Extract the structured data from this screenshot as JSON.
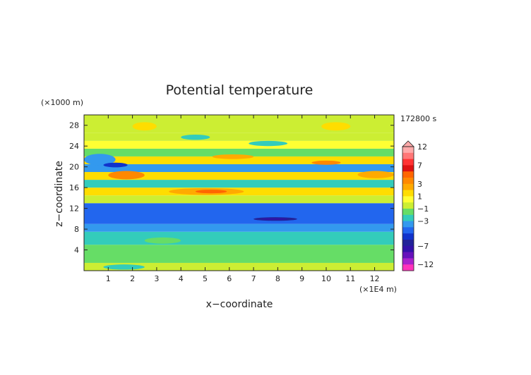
{
  "chart_data": {
    "type": "heatmap",
    "title": "Potential temperature",
    "xlabel": "x−coordinate",
    "ylabel": "z−coordinate",
    "x_unit": "(×1E4 m)",
    "y_unit": "(×1000 m)",
    "time_label": "172800 s",
    "xlim": [
      0,
      12.8
    ],
    "ylim": [
      0,
      30
    ],
    "x_ticks": [
      "1",
      "2",
      "3",
      "4",
      "5",
      "6",
      "7",
      "8",
      "9",
      "10",
      "11",
      "12"
    ],
    "y_ticks": [
      "4",
      "8",
      "12",
      "16",
      "20",
      "24",
      "28"
    ],
    "colorbar": {
      "labels": [
        "12",
        "7",
        "3",
        "1",
        "−1",
        "−3",
        "−7",
        "−12"
      ],
      "label_values": [
        12,
        7,
        3,
        1,
        -1,
        -3,
        -7,
        -12
      ],
      "levels": [
        {
          "value": 12,
          "color": "#ffaaaa"
        },
        {
          "value": 10,
          "color": "#ff7777"
        },
        {
          "value": 8,
          "color": "#ff3333"
        },
        {
          "value": 7,
          "color": "#dd1111"
        },
        {
          "value": 5,
          "color": "#ff6600"
        },
        {
          "value": 4,
          "color": "#ff8800"
        },
        {
          "value": 3,
          "color": "#ffaa00"
        },
        {
          "value": 2,
          "color": "#ffdd00"
        },
        {
          "value": 1,
          "color": "#ffff33"
        },
        {
          "value": 0,
          "color": "#ccee33"
        },
        {
          "value": -1,
          "color": "#66dd66"
        },
        {
          "value": -2,
          "color": "#33ccbb"
        },
        {
          "value": -3,
          "color": "#3399ee"
        },
        {
          "value": -4,
          "color": "#2266ee"
        },
        {
          "value": -5,
          "color": "#1133cc"
        },
        {
          "value": -6,
          "color": "#222299"
        },
        {
          "value": -7,
          "color": "#3311aa"
        },
        {
          "value": -8,
          "color": "#6611bb"
        },
        {
          "value": -10,
          "color": "#aa22cc"
        },
        {
          "value": -12,
          "color": "#ff33bb"
        }
      ]
    },
    "bands": [
      {
        "z": [
          0,
          1.5
        ],
        "value": 0.5
      },
      {
        "z": [
          1.5,
          5
        ],
        "value": -1.0
      },
      {
        "z": [
          5,
          7.5
        ],
        "value": -1.6
      },
      {
        "z": [
          7.5,
          9
        ],
        "value": -2.3
      },
      {
        "z": [
          9,
          13
        ],
        "value": -3.6
      },
      {
        "z": [
          13,
          14.5
        ],
        "value": 0.8
      },
      {
        "z": [
          14.5,
          16
        ],
        "value": 2.4
      },
      {
        "z": [
          16,
          17.5
        ],
        "value": -1.2
      },
      {
        "z": [
          17.5,
          19
        ],
        "value": 2.2
      },
      {
        "z": [
          19,
          20.5
        ],
        "value": -2.2
      },
      {
        "z": [
          20.5,
          22
        ],
        "value": 2.6
      },
      {
        "z": [
          22,
          23.5
        ],
        "value": -0.9
      },
      {
        "z": [
          23.5,
          25
        ],
        "value": 1.4
      },
      {
        "z": [
          25,
          26.5
        ],
        "value": 0.4
      },
      {
        "z": [
          26.5,
          30
        ],
        "value": 0.9
      }
    ],
    "features": [
      {
        "x": [
          1.0,
          2.5
        ],
        "z": [
          17.6,
          19.2
        ],
        "value": 4.0
      },
      {
        "x": [
          3.5,
          6.6
        ],
        "z": [
          14.6,
          15.9
        ],
        "value": 3.6
      },
      {
        "x": [
          4.6,
          5.9
        ],
        "z": [
          14.9,
          15.6
        ],
        "value": 5.0
      },
      {
        "x": [
          5.3,
          7.0
        ],
        "z": [
          21.5,
          22.4
        ],
        "value": 3.0
      },
      {
        "x": [
          9.4,
          10.6
        ],
        "z": [
          20.4,
          21.2
        ],
        "value": 4.0
      },
      {
        "x": [
          11.3,
          12.8
        ],
        "z": [
          17.8,
          19.2
        ],
        "value": 3.6
      },
      {
        "x": [
          0.0,
          1.3
        ],
        "z": [
          20.3,
          22.5
        ],
        "value": -3.0
      },
      {
        "x": [
          0.8,
          1.8
        ],
        "z": [
          19.9,
          20.8
        ],
        "value": -5.0
      },
      {
        "x": [
          7.0,
          8.8
        ],
        "z": [
          9.6,
          10.3
        ],
        "value": -5.5
      },
      {
        "x": [
          7.3,
          8.4
        ],
        "z": [
          9.8,
          10.1
        ],
        "value": -6.5
      },
      {
        "x": [
          2.0,
          3.0
        ],
        "z": [
          27.0,
          28.6
        ],
        "value": 2.0
      },
      {
        "x": [
          9.8,
          11.0
        ],
        "z": [
          27.0,
          28.6
        ],
        "value": 2.0
      },
      {
        "x": [
          4.0,
          5.2
        ],
        "z": [
          25.2,
          26.2
        ],
        "value": -1.2
      },
      {
        "x": [
          6.8,
          8.4
        ],
        "z": [
          24.0,
          25.0
        ],
        "value": -1.4
      },
      {
        "x": [
          2.5,
          4.0
        ],
        "z": [
          5.2,
          6.4
        ],
        "value": -1.0
      },
      {
        "x": [
          6.0,
          9.5
        ],
        "z": [
          1.6,
          3.2
        ],
        "value": -0.6
      },
      {
        "x": [
          0.8,
          2.5
        ],
        "z": [
          0.2,
          1.2
        ],
        "value": -1.8
      }
    ]
  }
}
